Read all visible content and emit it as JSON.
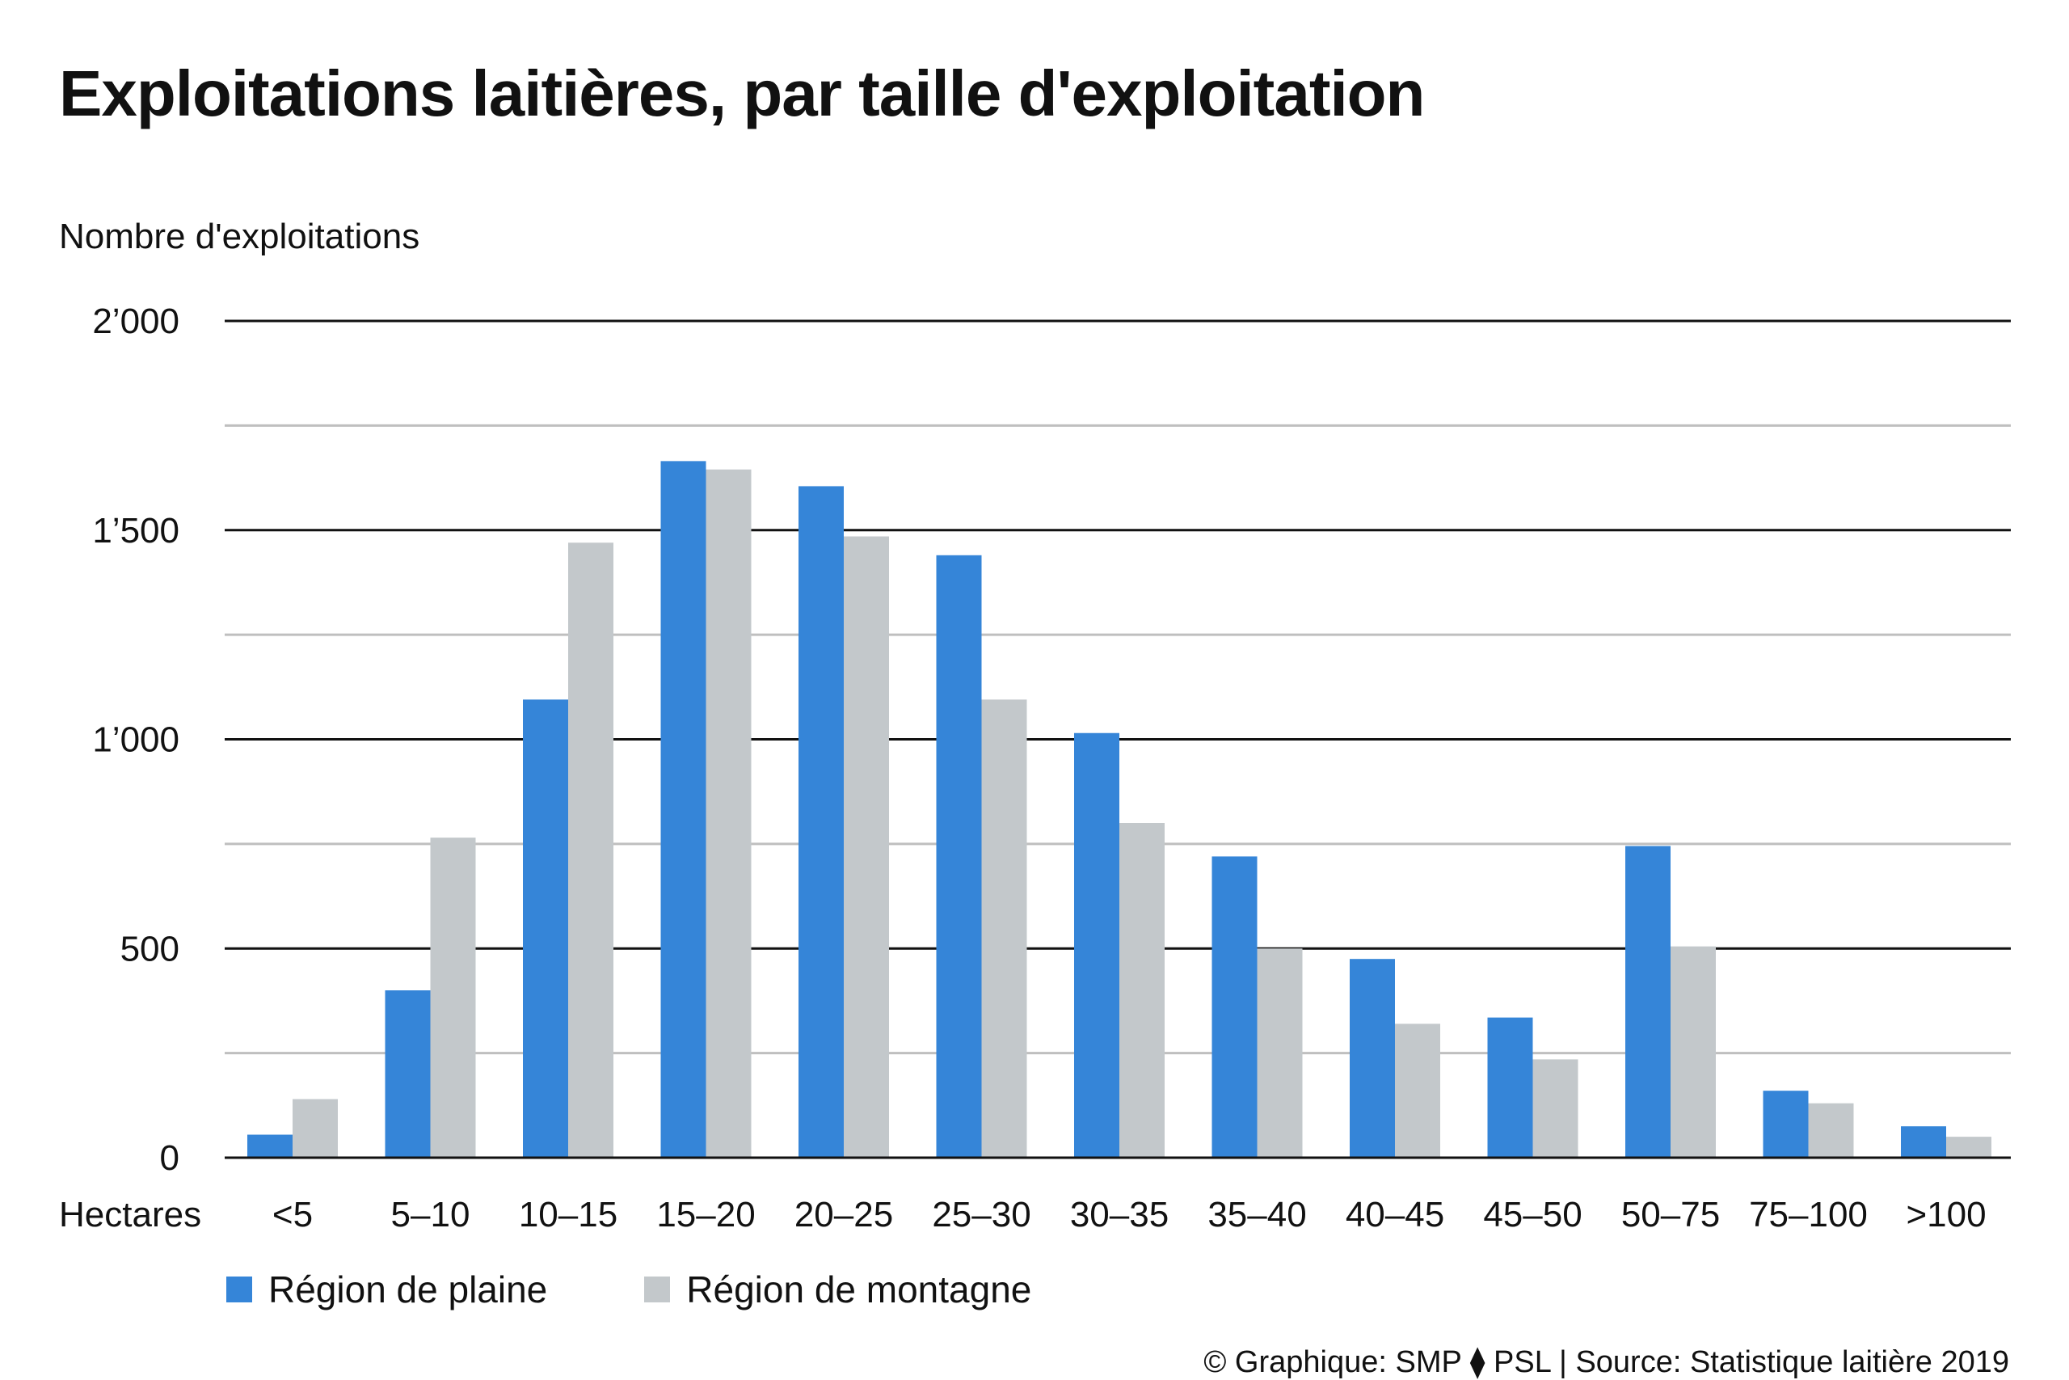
{
  "title": "Exploitations laitières, par taille d'exploitation",
  "ylabel": "Nombre d'exploitations",
  "footer": "© Graphique: SMP ⧫ PSL | Source: Statistique laitière 2019",
  "colors": {
    "plaine": "#3585d8",
    "montagne": "#c3c8cb",
    "major_grid": "#111111",
    "minor_grid": "#bfbfbf"
  },
  "chart_data": {
    "type": "bar",
    "xlabel": "Hectares",
    "ylabel": "Nombre d'exploitations",
    "categories": [
      "<5",
      "5–10",
      "10–15",
      "15–20",
      "20–25",
      "25–30",
      "30–35",
      "35–40",
      "40–45",
      "45–50",
      "50–75",
      "75–100",
      ">100"
    ],
    "series": [
      {
        "name": "Région de plaine",
        "color": "#3585d8",
        "values": [
          55,
          400,
          1095,
          1665,
          1605,
          1440,
          1015,
          720,
          475,
          335,
          745,
          160,
          75
        ]
      },
      {
        "name": "Région de montagne",
        "color": "#c3c8cb",
        "values": [
          140,
          765,
          1470,
          1645,
          1485,
          1095,
          800,
          500,
          320,
          235,
          505,
          130,
          50
        ]
      }
    ],
    "ylim": [
      0,
      2000
    ],
    "yticks": [
      0,
      500,
      1000,
      1500,
      2000
    ],
    "ytick_labels": [
      "0",
      "500",
      "1’000",
      "1’500",
      "2’000"
    ],
    "minor_gridlines": [
      250,
      750,
      1250,
      1750
    ],
    "grid": true,
    "legend_position": "bottom-left"
  }
}
